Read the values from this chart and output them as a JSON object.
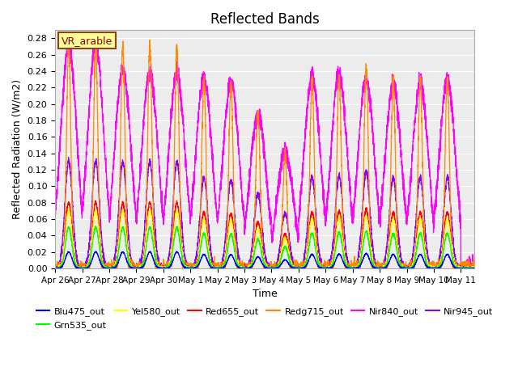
{
  "title": "Reflected Bands",
  "xlabel": "Time",
  "ylabel": "Reflected Radiation (W/m2)",
  "annotation": "VR_arable",
  "ylim": [
    0,
    0.29
  ],
  "yticks": [
    0.0,
    0.02,
    0.04,
    0.06,
    0.08,
    0.1,
    0.12,
    0.14,
    0.16,
    0.18,
    0.2,
    0.22,
    0.24,
    0.26,
    0.28
  ],
  "series_names": [
    "Blu475_out",
    "Grn535_out",
    "Yel580_out",
    "Red655_out",
    "Redg715_out",
    "Nir840_out",
    "Nir945_out"
  ],
  "series_colors": [
    "#0000ff",
    "#00ff00",
    "#ffff00",
    "#ff0000",
    "#ff8800",
    "#ff00ff",
    "#8800ff"
  ],
  "series_peaks": [
    0.02,
    0.05,
    0.07,
    0.08,
    0.27,
    0.27,
    0.13
  ],
  "series_widths": [
    0.12,
    0.12,
    0.12,
    0.12,
    0.08,
    0.38,
    0.14
  ],
  "day_labels": [
    "Apr 26",
    "Apr 27",
    "Apr 28",
    "Apr 29",
    "Apr 30",
    "May 1",
    "May 2",
    "May 3",
    "May 4",
    "May 5",
    "May 6",
    "May 7",
    "May 8",
    "May 9",
    "May 10",
    "May 11"
  ],
  "day_factors": [
    1.0,
    1.0,
    1.0,
    1.0,
    1.0,
    0.85,
    0.83,
    0.7,
    0.52,
    0.85,
    0.87,
    0.9,
    0.85,
    0.85,
    0.85,
    0.0
  ],
  "nir840_factors": [
    1.0,
    1.0,
    0.9,
    0.88,
    0.88,
    0.86,
    0.84,
    0.7,
    0.52,
    0.86,
    0.87,
    0.85,
    0.83,
    0.83,
    0.85,
    0.0
  ],
  "background_color": "#e8e8e8",
  "plot_bg_color": "#ececec"
}
